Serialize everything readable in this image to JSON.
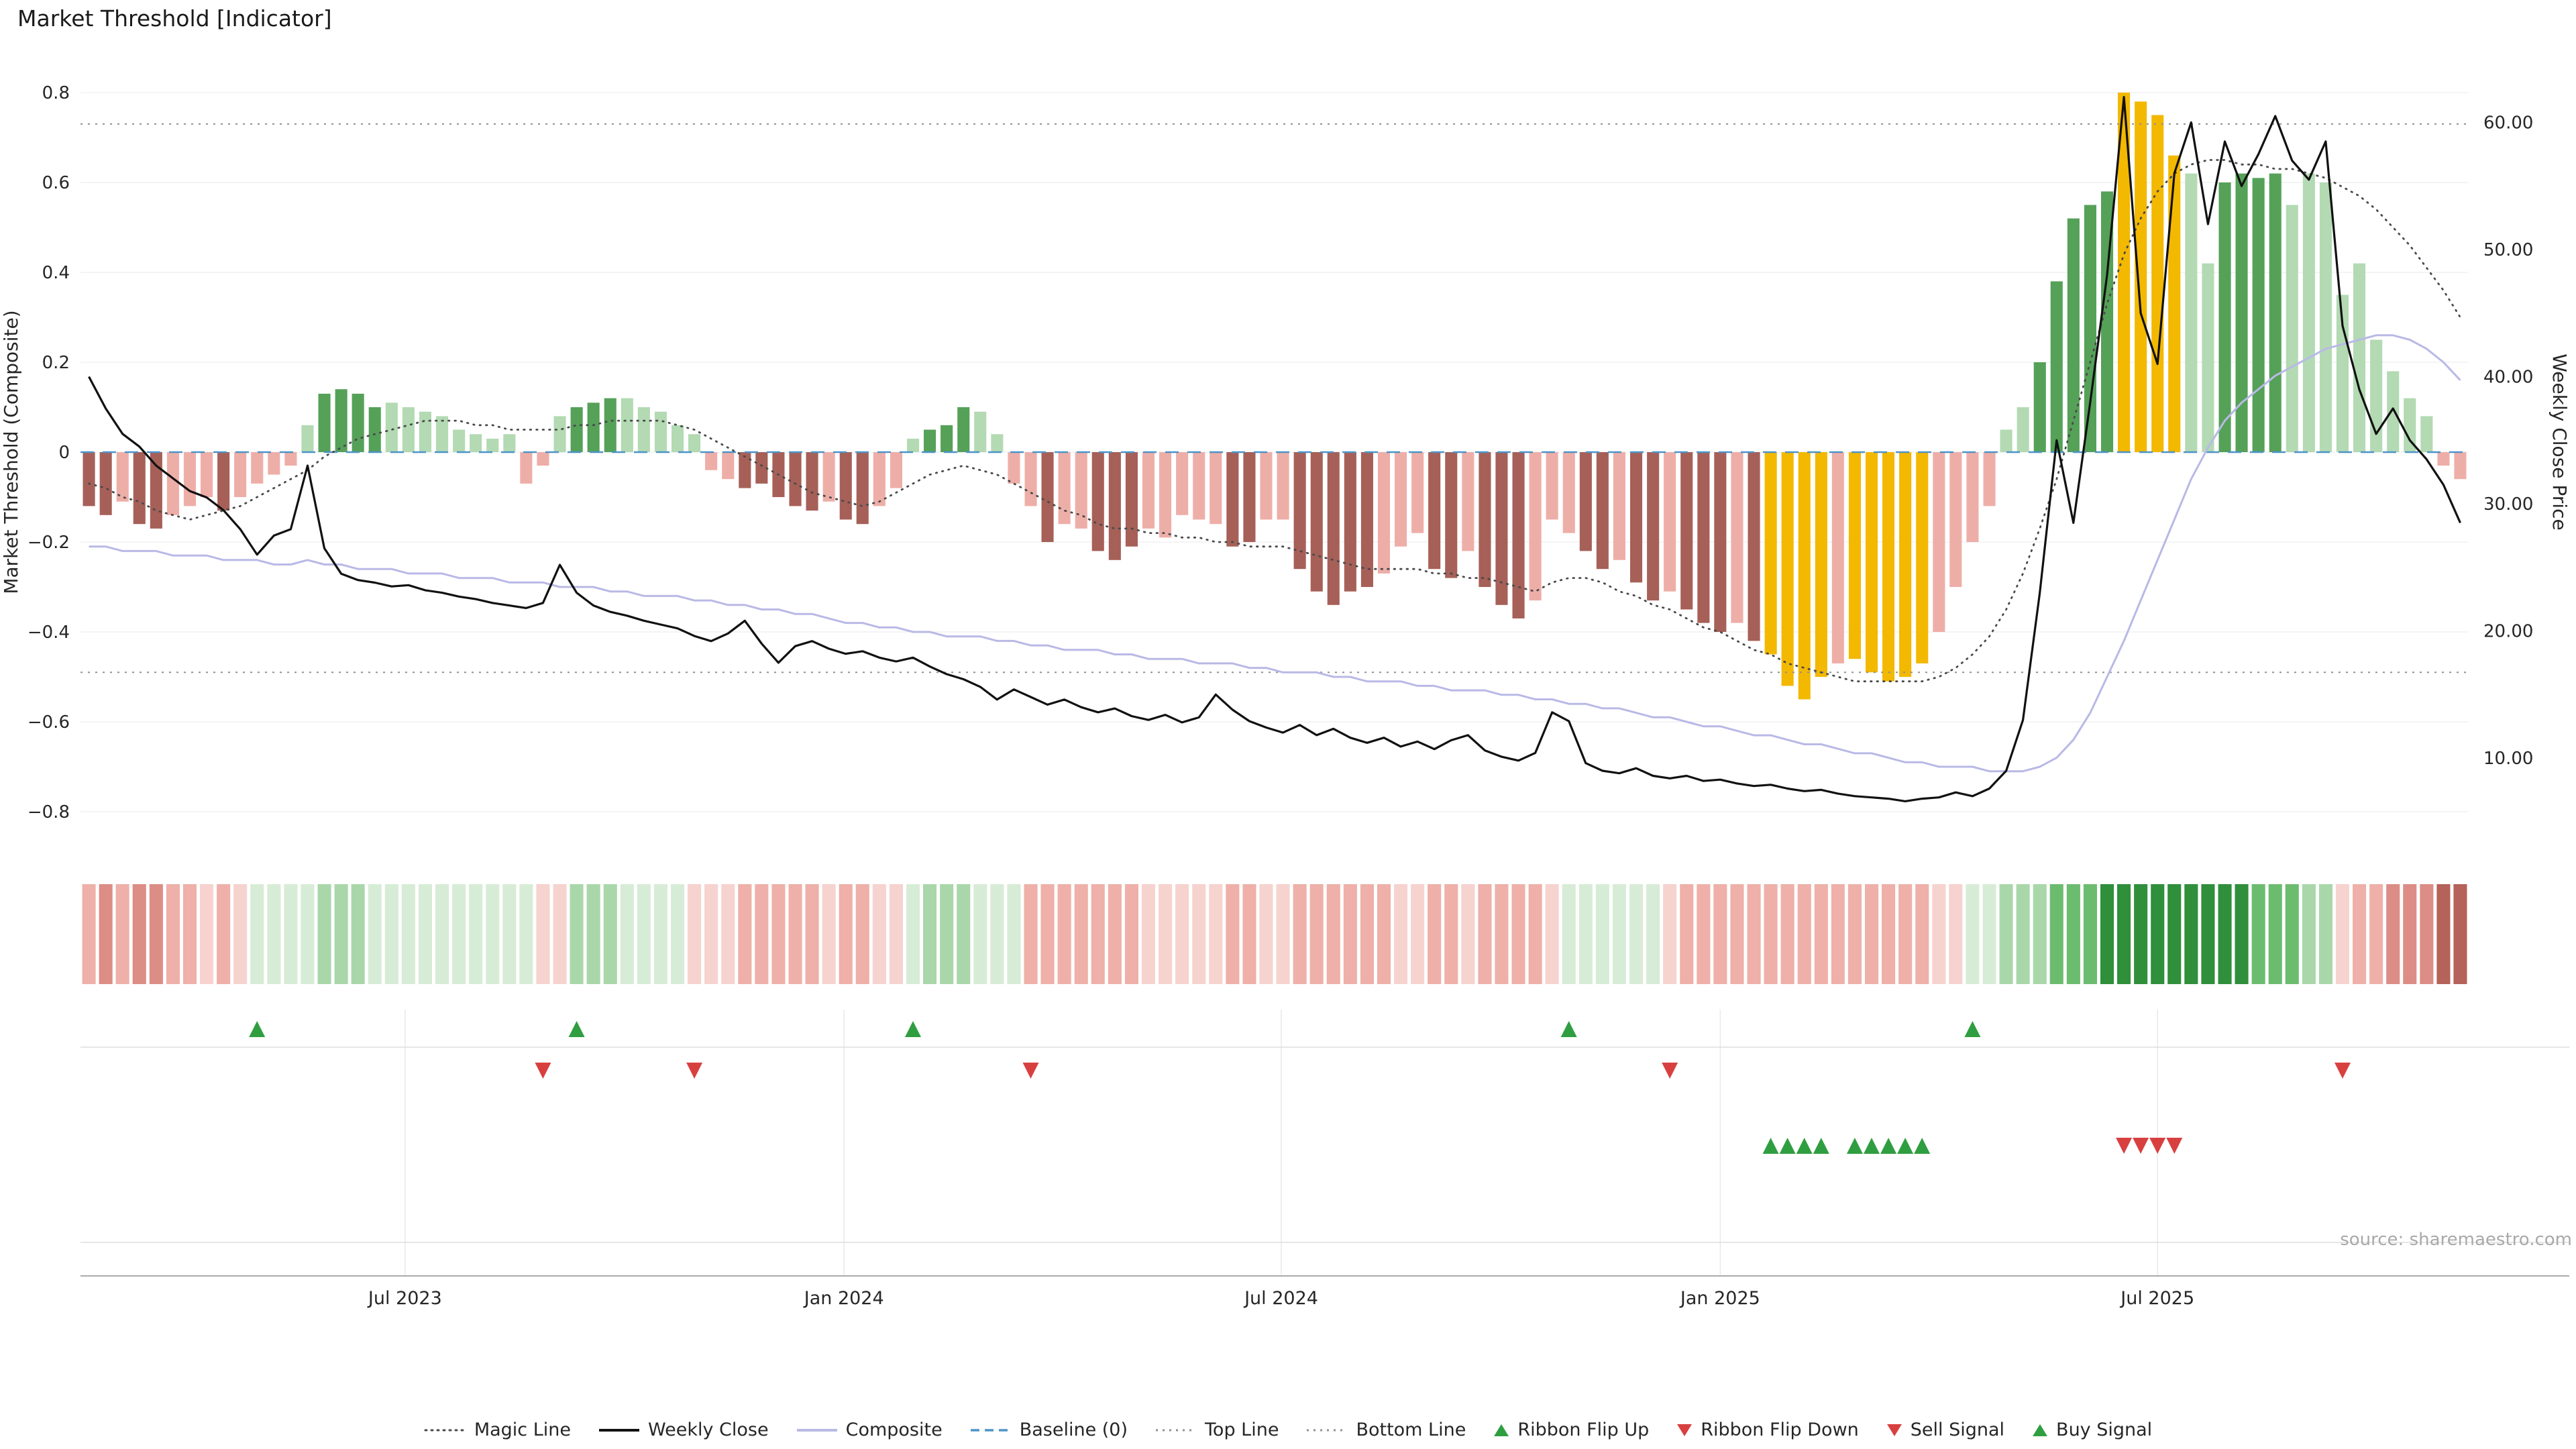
{
  "title": "Market Threshold [Indicator]",
  "source": "source: sharemaestro.com",
  "axes": {
    "left_label": "Market Threshold (Composite)",
    "right_label": "Weekly Close Price",
    "left_ticks": [
      {
        "v": 0.8,
        "label": "0.8"
      },
      {
        "v": 0.6,
        "label": "0.6"
      },
      {
        "v": 0.4,
        "label": "0.4"
      },
      {
        "v": 0.2,
        "label": "0.2"
      },
      {
        "v": 0.0,
        "label": "0"
      },
      {
        "v": -0.2,
        "label": "−0.2"
      },
      {
        "v": -0.4,
        "label": "−0.4"
      },
      {
        "v": -0.6,
        "label": "−0.6"
      },
      {
        "v": -0.8,
        "label": "−0.8"
      }
    ],
    "right_ticks": [
      {
        "v": 60,
        "label": "60.00"
      },
      {
        "v": 50,
        "label": "50.00"
      },
      {
        "v": 40,
        "label": "40.00"
      },
      {
        "v": 30,
        "label": "30.00"
      },
      {
        "v": 20,
        "label": "20.00"
      },
      {
        "v": 10,
        "label": "10.00"
      }
    ],
    "x_ticks": [
      {
        "index": 18.8,
        "label": "Jul 2023"
      },
      {
        "index": 44.9,
        "label": "Jan 2024"
      },
      {
        "index": 70.9,
        "label": "Jul 2024"
      },
      {
        "index": 97.0,
        "label": "Jan 2025"
      },
      {
        "index": 123.0,
        "label": "Jul 2025"
      }
    ]
  },
  "colors": {
    "dr": "#a66058",
    "lr": "#eeaea8",
    "dg": "#55a158",
    "lg": "#b3dab3",
    "au": "#f3b800",
    "weekly_close": "#111111",
    "composite": "#b9b9e6",
    "magic_line": "#4a4a4a",
    "baseline": "#4d94c8",
    "ref_line": "#909090",
    "signal_up": "#2f9e41",
    "signal_down": "#d84040",
    "ribbon": {
      "g1": "#d7ecd6",
      "g2": "#a9d7aa",
      "g3": "#6cbc70",
      "g4": "#2f8f3b",
      "r1": "#f6d3cf",
      "r2": "#eeb0a9",
      "r3": "#dc8d85",
      "r4": "#b4625a"
    }
  },
  "legend": [
    {
      "label": "Magic Line"
    },
    {
      "label": "Weekly Close"
    },
    {
      "label": "Composite"
    },
    {
      "label": "Baseline (0)"
    },
    {
      "label": "Top Line"
    },
    {
      "label": "Bottom Line"
    },
    {
      "label": "Ribbon Flip Up"
    },
    {
      "label": "Ribbon Flip Down"
    },
    {
      "label": "Sell Signal"
    },
    {
      "label": "Buy Signal"
    }
  ],
  "chart_data": {
    "type": "bar",
    "title": "Market Threshold [Indicator]",
    "x_unit": "weeks",
    "n_weeks": 142,
    "left_axis_range": [
      -0.9,
      0.85
    ],
    "right_axis_range": [
      5,
      63
    ],
    "reference_lines": {
      "baseline": 0,
      "top_line": 0.73,
      "bottom_line": -0.49
    },
    "series": [
      {
        "name": "Market Threshold (Composite) bars",
        "type": "bar",
        "axis": "left",
        "values": [
          -0.12,
          -0.14,
          -0.11,
          -0.16,
          -0.17,
          -0.14,
          -0.12,
          -0.1,
          -0.13,
          -0.1,
          -0.07,
          -0.05,
          -0.03,
          0.06,
          0.13,
          0.14,
          0.13,
          0.1,
          0.11,
          0.1,
          0.09,
          0.08,
          0.05,
          0.04,
          0.03,
          0.04,
          -0.07,
          -0.03,
          0.08,
          0.1,
          0.11,
          0.12,
          0.12,
          0.1,
          0.09,
          0.06,
          0.04,
          -0.04,
          -0.06,
          -0.08,
          -0.07,
          -0.1,
          -0.12,
          -0.13,
          -0.11,
          -0.15,
          -0.16,
          -0.12,
          -0.08,
          0.03,
          0.05,
          0.06,
          0.1,
          0.09,
          0.04,
          -0.07,
          -0.12,
          -0.2,
          -0.16,
          -0.17,
          -0.22,
          -0.24,
          -0.21,
          -0.17,
          -0.19,
          -0.14,
          -0.15,
          -0.16,
          -0.21,
          -0.2,
          -0.15,
          -0.15,
          -0.26,
          -0.31,
          -0.34,
          -0.31,
          -0.3,
          -0.27,
          -0.21,
          -0.18,
          -0.26,
          -0.28,
          -0.22,
          -0.3,
          -0.34,
          -0.37,
          -0.33,
          -0.15,
          -0.18,
          -0.22,
          -0.26,
          -0.24,
          -0.29,
          -0.33,
          -0.31,
          -0.35,
          -0.38,
          -0.4,
          -0.38,
          -0.42,
          -0.45,
          -0.52,
          -0.55,
          -0.5,
          -0.47,
          -0.46,
          -0.49,
          -0.51,
          -0.5,
          -0.47,
          -0.4,
          -0.3,
          -0.2,
          -0.12,
          0.05,
          0.1,
          0.2,
          0.38,
          0.52,
          0.55,
          0.58,
          0.8,
          0.78,
          0.75,
          0.66,
          0.62,
          0.42,
          0.6,
          0.62,
          0.61,
          0.62,
          0.55,
          0.62,
          0.6,
          0.35,
          0.42,
          0.25,
          0.18,
          0.12,
          0.08,
          -0.03,
          -0.06
        ],
        "color_class": [
          "dr",
          "dr",
          "lr",
          "dr",
          "dr",
          "lr",
          "lr",
          "lr",
          "dr",
          "lr",
          "lr",
          "lr",
          "lr",
          "lg",
          "dg",
          "dg",
          "dg",
          "dg",
          "lg",
          "lg",
          "lg",
          "lg",
          "lg",
          "lg",
          "lg",
          "lg",
          "lr",
          "lr",
          "lg",
          "dg",
          "dg",
          "dg",
          "lg",
          "lg",
          "lg",
          "lg",
          "lg",
          "lr",
          "lr",
          "dr",
          "dr",
          "dr",
          "dr",
          "dr",
          "lr",
          "dr",
          "dr",
          "lr",
          "lr",
          "lg",
          "dg",
          "dg",
          "dg",
          "lg",
          "lg",
          "lr",
          "lr",
          "dr",
          "lr",
          "lr",
          "dr",
          "dr",
          "dr",
          "lr",
          "lr",
          "lr",
          "lr",
          "lr",
          "dr",
          "dr",
          "lr",
          "lr",
          "dr",
          "dr",
          "dr",
          "dr",
          "dr",
          "lr",
          "lr",
          "lr",
          "dr",
          "dr",
          "lr",
          "dr",
          "dr",
          "dr",
          "lr",
          "lr",
          "lr",
          "dr",
          "dr",
          "lr",
          "dr",
          "dr",
          "lr",
          "dr",
          "dr",
          "dr",
          "lr",
          "dr",
          "au",
          "au",
          "au",
          "au",
          "lr",
          "au",
          "au",
          "au",
          "au",
          "au",
          "lr",
          "lr",
          "lr",
          "lr",
          "lg",
          "lg",
          "dg",
          "dg",
          "dg",
          "dg",
          "dg",
          "au",
          "au",
          "au",
          "au",
          "lg",
          "lg",
          "dg",
          "dg",
          "dg",
          "dg",
          "lg",
          "lg",
          "lg",
          "lg",
          "lg",
          "lg",
          "lg",
          "lg",
          "lg",
          "lr",
          "lr"
        ]
      },
      {
        "name": "Weekly Close",
        "type": "line",
        "axis": "right",
        "values": [
          40.0,
          37.5,
          35.5,
          34.5,
          33.0,
          32.0,
          31.0,
          30.5,
          29.5,
          28.0,
          26.0,
          27.5,
          28.0,
          33.0,
          26.5,
          24.5,
          24.0,
          23.8,
          23.5,
          23.6,
          23.2,
          23.0,
          22.7,
          22.5,
          22.2,
          22.0,
          21.8,
          22.2,
          25.2,
          23.0,
          22.0,
          21.5,
          21.2,
          20.8,
          20.5,
          20.2,
          19.6,
          19.2,
          19.8,
          20.8,
          19.0,
          17.5,
          18.8,
          19.2,
          18.6,
          18.2,
          18.4,
          17.9,
          17.6,
          17.9,
          17.2,
          16.6,
          16.2,
          15.6,
          14.6,
          15.4,
          14.8,
          14.2,
          14.6,
          14.0,
          13.6,
          13.9,
          13.3,
          13.0,
          13.4,
          12.8,
          13.2,
          15.0,
          13.8,
          12.9,
          12.4,
          12.0,
          12.6,
          11.8,
          12.3,
          11.6,
          11.2,
          11.6,
          10.9,
          11.3,
          10.7,
          11.4,
          11.8,
          10.6,
          10.1,
          9.8,
          10.4,
          13.6,
          12.9,
          9.6,
          9.0,
          8.8,
          9.2,
          8.6,
          8.4,
          8.6,
          8.2,
          8.3,
          8.0,
          7.8,
          7.9,
          7.6,
          7.4,
          7.5,
          7.2,
          7.0,
          6.9,
          6.8,
          6.6,
          6.8,
          6.9,
          7.3,
          7.0,
          7.6,
          9.0,
          13.0,
          23.0,
          35.0,
          28.5,
          38.0,
          48.0,
          62.0,
          45.0,
          41.0,
          56.0,
          60.0,
          52.0,
          58.5,
          55.0,
          57.5,
          60.5,
          57.0,
          55.5,
          58.5,
          44.0,
          39.0,
          35.5,
          37.5,
          35.0,
          33.5,
          31.5,
          28.5
        ]
      },
      {
        "name": "Composite",
        "type": "line",
        "axis": "left",
        "values": [
          -0.21,
          -0.21,
          -0.22,
          -0.22,
          -0.22,
          -0.23,
          -0.23,
          -0.23,
          -0.24,
          -0.24,
          -0.24,
          -0.25,
          -0.25,
          -0.24,
          -0.25,
          -0.25,
          -0.26,
          -0.26,
          -0.26,
          -0.27,
          -0.27,
          -0.27,
          -0.28,
          -0.28,
          -0.28,
          -0.29,
          -0.29,
          -0.29,
          -0.3,
          -0.3,
          -0.3,
          -0.31,
          -0.31,
          -0.32,
          -0.32,
          -0.32,
          -0.33,
          -0.33,
          -0.34,
          -0.34,
          -0.35,
          -0.35,
          -0.36,
          -0.36,
          -0.37,
          -0.38,
          -0.38,
          -0.39,
          -0.39,
          -0.4,
          -0.4,
          -0.41,
          -0.41,
          -0.41,
          -0.42,
          -0.42,
          -0.43,
          -0.43,
          -0.44,
          -0.44,
          -0.44,
          -0.45,
          -0.45,
          -0.46,
          -0.46,
          -0.46,
          -0.47,
          -0.47,
          -0.47,
          -0.48,
          -0.48,
          -0.49,
          -0.49,
          -0.49,
          -0.5,
          -0.5,
          -0.51,
          -0.51,
          -0.51,
          -0.52,
          -0.52,
          -0.53,
          -0.53,
          -0.53,
          -0.54,
          -0.54,
          -0.55,
          -0.55,
          -0.56,
          -0.56,
          -0.57,
          -0.57,
          -0.58,
          -0.59,
          -0.59,
          -0.6,
          -0.61,
          -0.61,
          -0.62,
          -0.63,
          -0.63,
          -0.64,
          -0.65,
          -0.65,
          -0.66,
          -0.67,
          -0.67,
          -0.68,
          -0.69,
          -0.69,
          -0.7,
          -0.7,
          -0.7,
          -0.71,
          -0.71,
          -0.71,
          -0.7,
          -0.68,
          -0.64,
          -0.58,
          -0.5,
          -0.42,
          -0.33,
          -0.24,
          -0.15,
          -0.06,
          0.01,
          0.07,
          0.11,
          0.14,
          0.17,
          0.19,
          0.21,
          0.23,
          0.24,
          0.25,
          0.26,
          0.26,
          0.25,
          0.23,
          0.2,
          0.16
        ]
      },
      {
        "name": "Magic Line",
        "type": "line",
        "style": "dotted",
        "axis": "left",
        "values": [
          -0.07,
          -0.08,
          -0.1,
          -0.11,
          -0.13,
          -0.14,
          -0.15,
          -0.14,
          -0.13,
          -0.12,
          -0.1,
          -0.08,
          -0.06,
          -0.04,
          -0.01,
          0.01,
          0.03,
          0.04,
          0.05,
          0.06,
          0.07,
          0.07,
          0.07,
          0.06,
          0.06,
          0.05,
          0.05,
          0.05,
          0.05,
          0.06,
          0.06,
          0.07,
          0.07,
          0.07,
          0.07,
          0.06,
          0.05,
          0.03,
          0.01,
          -0.01,
          -0.03,
          -0.05,
          -0.07,
          -0.09,
          -0.1,
          -0.11,
          -0.12,
          -0.11,
          -0.09,
          -0.07,
          -0.05,
          -0.04,
          -0.03,
          -0.04,
          -0.05,
          -0.07,
          -0.09,
          -0.11,
          -0.13,
          -0.14,
          -0.16,
          -0.17,
          -0.17,
          -0.18,
          -0.18,
          -0.19,
          -0.19,
          -0.2,
          -0.2,
          -0.21,
          -0.21,
          -0.21,
          -0.22,
          -0.23,
          -0.24,
          -0.25,
          -0.26,
          -0.26,
          -0.26,
          -0.26,
          -0.27,
          -0.27,
          -0.28,
          -0.28,
          -0.29,
          -0.3,
          -0.31,
          -0.29,
          -0.28,
          -0.28,
          -0.29,
          -0.31,
          -0.32,
          -0.34,
          -0.35,
          -0.37,
          -0.39,
          -0.4,
          -0.42,
          -0.44,
          -0.45,
          -0.47,
          -0.48,
          -0.49,
          -0.5,
          -0.51,
          -0.51,
          -0.51,
          -0.51,
          -0.51,
          -0.5,
          -0.48,
          -0.45,
          -0.41,
          -0.35,
          -0.27,
          -0.17,
          -0.06,
          0.07,
          0.2,
          0.33,
          0.44,
          0.52,
          0.58,
          0.62,
          0.64,
          0.65,
          0.65,
          0.64,
          0.64,
          0.63,
          0.63,
          0.62,
          0.61,
          0.59,
          0.57,
          0.54,
          0.5,
          0.46,
          0.41,
          0.36,
          0.3
        ]
      }
    ],
    "ribbon": [
      "r2",
      "r3",
      "r2",
      "r3",
      "r3",
      "r2",
      "r2",
      "r1",
      "r2",
      "r1",
      "g1",
      "g1",
      "g1",
      "g1",
      "g2",
      "g2",
      "g2",
      "g1",
      "g1",
      "g1",
      "g1",
      "g1",
      "g1",
      "g1",
      "g1",
      "g1",
      "g1",
      "r1",
      "r1",
      "g2",
      "g2",
      "g2",
      "g1",
      "g1",
      "g1",
      "g1",
      "r1",
      "r1",
      "r1",
      "r2",
      "r2",
      "r2",
      "r2",
      "r2",
      "r1",
      "r2",
      "r2",
      "r1",
      "r1",
      "g1",
      "g2",
      "g2",
      "g2",
      "g1",
      "g1",
      "g1",
      "r2",
      "r2",
      "r2",
      "r2",
      "r2",
      "r2",
      "r2",
      "r1",
      "r1",
      "r1",
      "r1",
      "r1",
      "r2",
      "r2",
      "r1",
      "r1",
      "r2",
      "r2",
      "r2",
      "r2",
      "r2",
      "r2",
      "r1",
      "r1",
      "r2",
      "r2",
      "r1",
      "r2",
      "r2",
      "r2",
      "r2",
      "r1",
      "g1",
      "g1",
      "g1",
      "g1",
      "g1",
      "g1",
      "r1",
      "r2",
      "r2",
      "r2",
      "r2",
      "r2",
      "r2",
      "r2",
      "r2",
      "r2",
      "r2",
      "r2",
      "r2",
      "r2",
      "r2",
      "r2",
      "r1",
      "r1",
      "g1",
      "g1",
      "g2",
      "g2",
      "g2",
      "g3",
      "g3",
      "g3",
      "g4",
      "g4",
      "g4",
      "g4",
      "g4",
      "g4",
      "g4",
      "g4",
      "g4",
      "g3",
      "g3",
      "g3",
      "g2",
      "g2",
      "r1",
      "r2",
      "r2",
      "r3",
      "r3",
      "r3",
      "r4",
      "r4"
    ],
    "signals": {
      "ribbon_flip_up_idx": [
        10,
        29,
        49,
        88,
        112
      ],
      "ribbon_flip_down_idx": [
        27,
        36,
        56,
        94,
        134
      ],
      "buy_signal_idx": [
        100,
        101,
        102,
        103,
        105,
        106,
        107,
        108,
        109
      ],
      "sell_signal_idx": [
        121,
        122,
        123,
        124
      ]
    }
  }
}
